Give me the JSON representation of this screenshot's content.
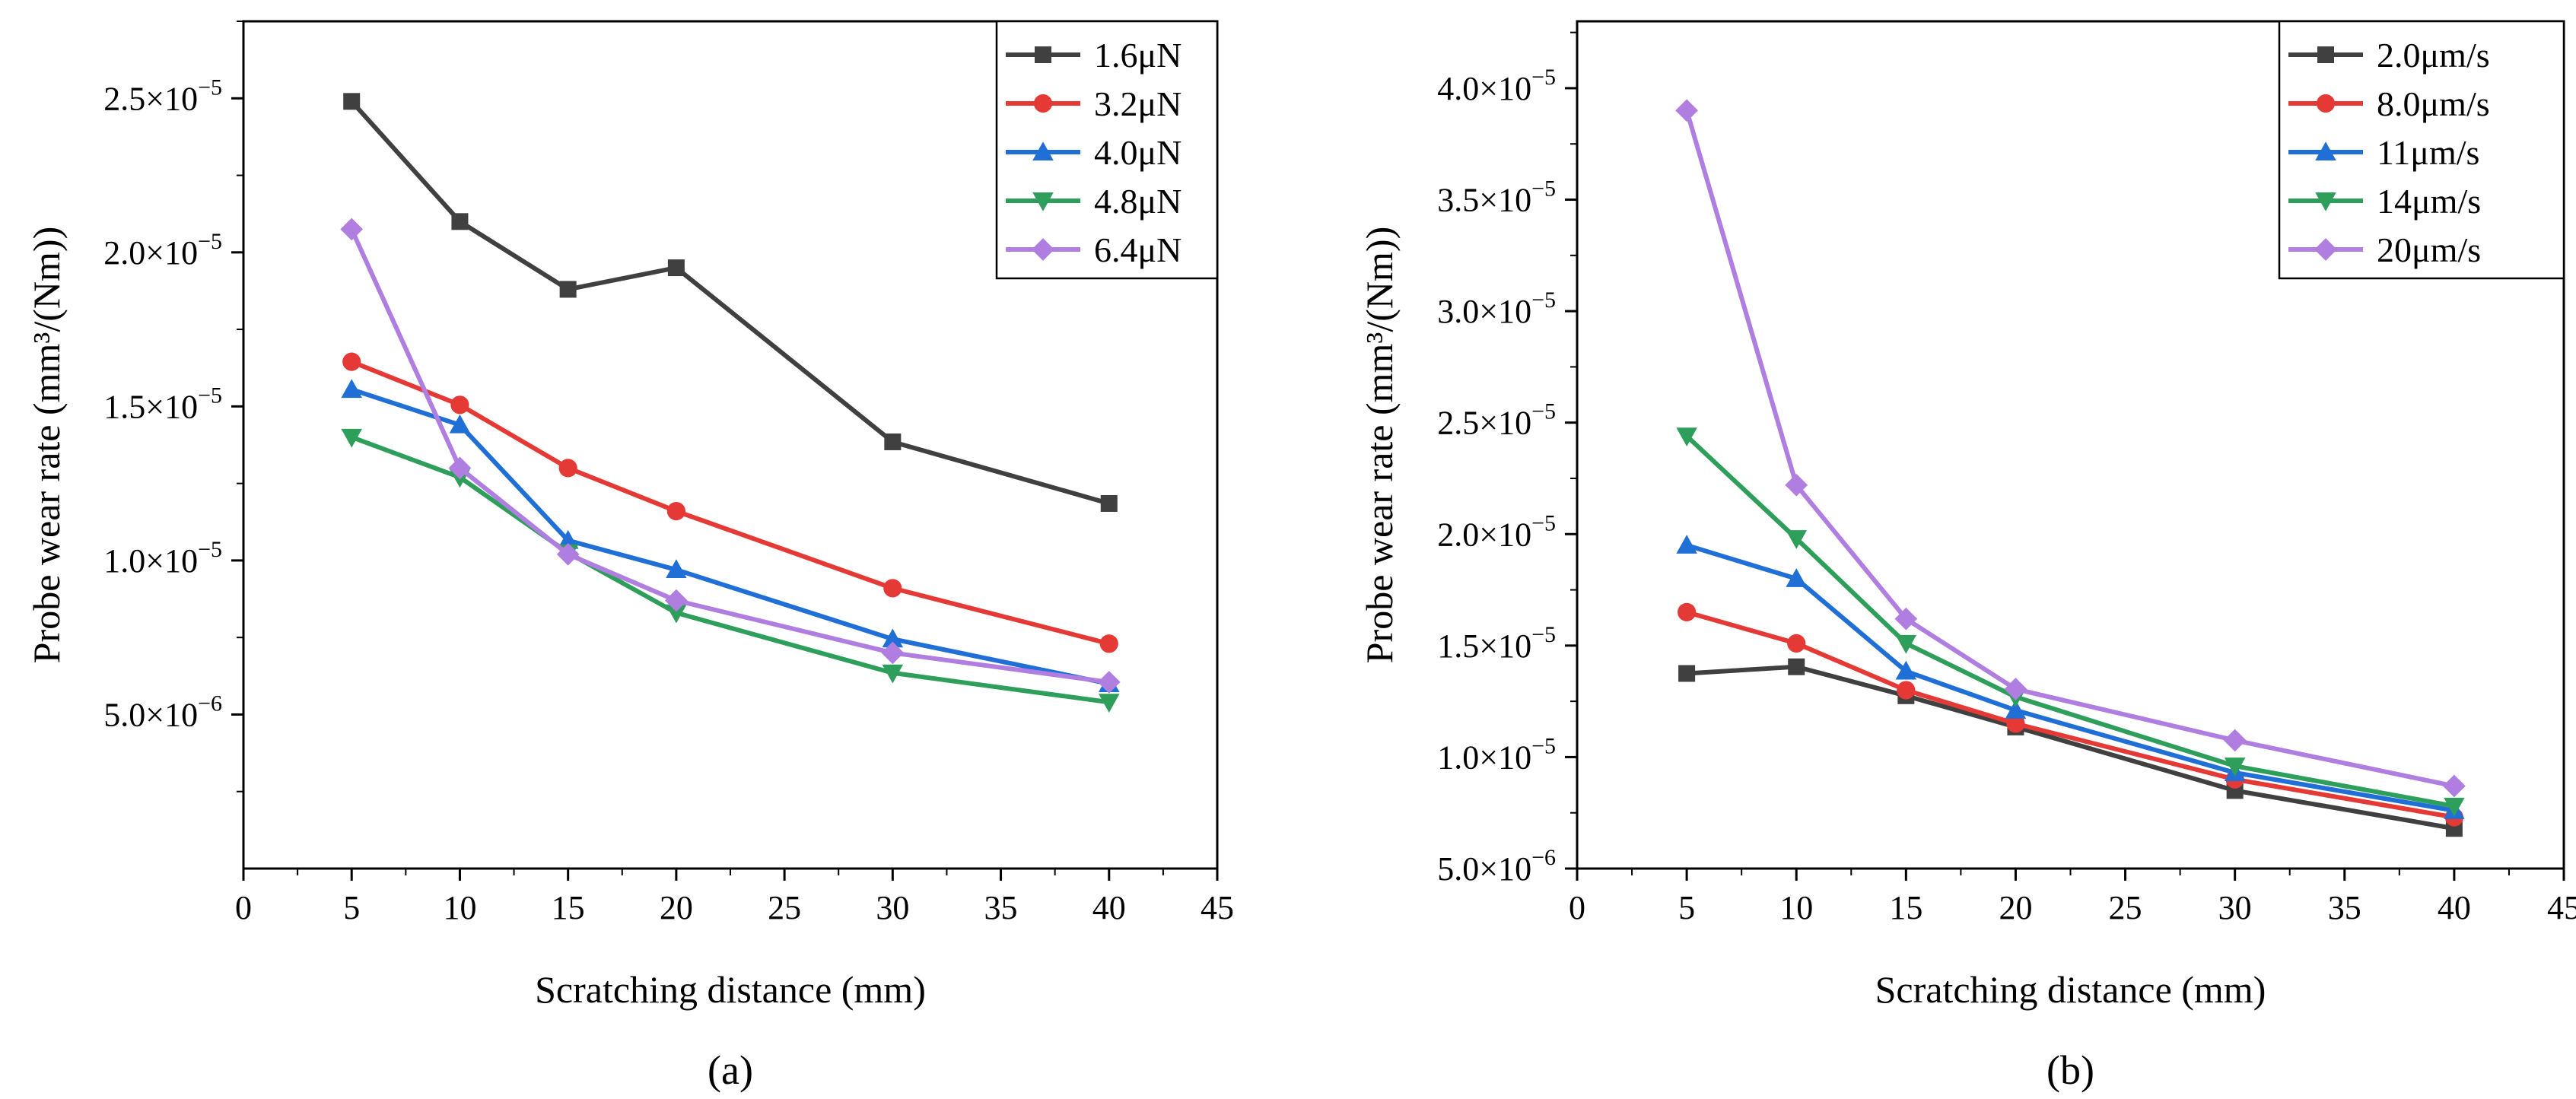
{
  "chart_data": [
    {
      "type": "line",
      "panel_label": "(a)",
      "xlabel": "Scratching distance (mm)",
      "ylabel": "Probe wear rate (mm³/(Nm))",
      "xlim": [
        0,
        45
      ],
      "ylim": [
        0,
        2.75e-05
      ],
      "xticks": [
        0,
        5,
        10,
        15,
        20,
        25,
        30,
        35,
        40,
        45
      ],
      "xtick_labels": [
        "0",
        "5",
        "10",
        "15",
        "20",
        "25",
        "30",
        "35",
        "40",
        "45"
      ],
      "yticks": [
        5e-06,
        1e-05,
        1.5e-05,
        2e-05,
        2.5e-05
      ],
      "ytick_labels": [
        {
          "mant": "5.0×10",
          "exp": "−6"
        },
        {
          "mant": "1.0×10",
          "exp": "−5"
        },
        {
          "mant": "1.5×10",
          "exp": "−5"
        },
        {
          "mant": "2.0×10",
          "exp": "−5"
        },
        {
          "mant": "2.5×10",
          "exp": "−5"
        }
      ],
      "legend_position": "top-right",
      "x": [
        5,
        10,
        15,
        20,
        30,
        40
      ],
      "series": [
        {
          "name": "1.6μN",
          "color": "#404040",
          "marker": "square",
          "values": [
            2.49e-05,
            2.1e-05,
            1.88e-05,
            1.95e-05,
            1.385e-05,
            1.185e-05
          ]
        },
        {
          "name": "3.2μN",
          "color": "#e53935",
          "marker": "circle",
          "values": [
            1.645e-05,
            1.505e-05,
            1.3e-05,
            1.16e-05,
            9.1e-06,
            7.3e-06
          ]
        },
        {
          "name": "4.0μN",
          "color": "#1f6fd6",
          "marker": "triangle-up",
          "values": [
            1.555e-05,
            1.44e-05,
            1.065e-05,
            9.7e-06,
            7.45e-06,
            6e-06
          ]
        },
        {
          "name": "4.8μN",
          "color": "#2e9e5b",
          "marker": "triangle-down",
          "values": [
            1.4e-05,
            1.27e-05,
            1.025e-05,
            8.3e-06,
            6.35e-06,
            5.4e-06
          ]
        },
        {
          "name": "6.4μN",
          "color": "#b07ee0",
          "marker": "diamond",
          "values": [
            2.075e-05,
            1.3e-05,
            1.02e-05,
            8.7e-06,
            7e-06,
            6.05e-06
          ]
        }
      ]
    },
    {
      "type": "line",
      "panel_label": "(b)",
      "xlabel": "Scratching distance (mm)",
      "ylabel": "Probe wear rate (mm³/(Nm))",
      "xlim": [
        0,
        45
      ],
      "ylim": [
        5e-06,
        4.3e-05
      ],
      "xticks": [
        0,
        5,
        10,
        15,
        20,
        25,
        30,
        35,
        40,
        45
      ],
      "xtick_labels": [
        "0",
        "5",
        "10",
        "15",
        "20",
        "25",
        "30",
        "35",
        "40",
        "45"
      ],
      "yticks": [
        5e-06,
        1e-05,
        1.5e-05,
        2e-05,
        2.5e-05,
        3e-05,
        3.5e-05,
        4e-05
      ],
      "ytick_labels": [
        {
          "mant": "5.0×10",
          "exp": "−6"
        },
        {
          "mant": "1.0×10",
          "exp": "−5"
        },
        {
          "mant": "1.5×10",
          "exp": "−5"
        },
        {
          "mant": "2.0×10",
          "exp": "−5"
        },
        {
          "mant": "2.5×10",
          "exp": "−5"
        },
        {
          "mant": "3.0×10",
          "exp": "−5"
        },
        {
          "mant": "3.5×10",
          "exp": "−5"
        },
        {
          "mant": "4.0×10",
          "exp": "−5"
        }
      ],
      "legend_position": "top-right",
      "x": [
        5,
        10,
        15,
        20,
        30,
        40
      ],
      "series": [
        {
          "name": "2.0μm/s",
          "color": "#404040",
          "marker": "square",
          "values": [
            1.375e-05,
            1.405e-05,
            1.275e-05,
            1.135e-05,
            8.5e-06,
            6.8e-06
          ]
        },
        {
          "name": "8.0μm/s",
          "color": "#e53935",
          "marker": "circle",
          "values": [
            1.65e-05,
            1.51e-05,
            1.3e-05,
            1.15e-05,
            9e-06,
            7.3e-06
          ]
        },
        {
          "name": "11μm/s",
          "color": "#1f6fd6",
          "marker": "triangle-up",
          "values": [
            1.95e-05,
            1.8e-05,
            1.385e-05,
            1.21e-05,
            9.3e-06,
            7.6e-06
          ]
        },
        {
          "name": "14μm/s",
          "color": "#2e9e5b",
          "marker": "triangle-down",
          "values": [
            2.44e-05,
            1.98e-05,
            1.51e-05,
            1.27e-05,
            9.6e-06,
            7.8e-06
          ]
        },
        {
          "name": "20μm/s",
          "color": "#b07ee0",
          "marker": "diamond",
          "values": [
            3.9e-05,
            2.22e-05,
            1.62e-05,
            1.305e-05,
            1.075e-05,
            8.7e-06
          ]
        }
      ]
    }
  ]
}
